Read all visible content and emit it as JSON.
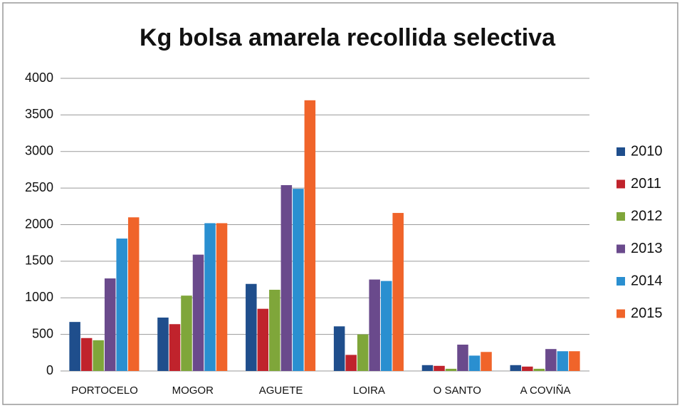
{
  "chart_data": {
    "type": "bar",
    "title": "Kg bolsa amarela recollida selectiva",
    "categories": [
      "PORTOCELO",
      "MOGOR",
      "AGUETE",
      "LOIRA",
      "O SANTO",
      "A COVIÑA"
    ],
    "series": [
      {
        "name": "2010",
        "color": "#1f4e8c",
        "values": [
          670,
          730,
          1190,
          610,
          80,
          80
        ]
      },
      {
        "name": "2011",
        "color": "#c0232c",
        "values": [
          450,
          640,
          850,
          220,
          70,
          60
        ]
      },
      {
        "name": "2012",
        "color": "#7fa63a",
        "values": [
          420,
          1030,
          1110,
          500,
          30,
          30
        ]
      },
      {
        "name": "2013",
        "color": "#6a4a8c",
        "values": [
          1265,
          1590,
          2540,
          1250,
          360,
          300
        ]
      },
      {
        "name": "2014",
        "color": "#2a8fd0",
        "values": [
          1810,
          2020,
          2490,
          1230,
          210,
          270
        ]
      },
      {
        "name": "2015",
        "color": "#f0642a",
        "values": [
          2100,
          2020,
          3700,
          2160,
          260,
          270
        ]
      }
    ],
    "ylim": [
      0,
      4000
    ],
    "yticks": [
      0,
      500,
      1000,
      1500,
      2000,
      2500,
      3000,
      3500,
      4000
    ],
    "grid": true,
    "legend": "right"
  }
}
